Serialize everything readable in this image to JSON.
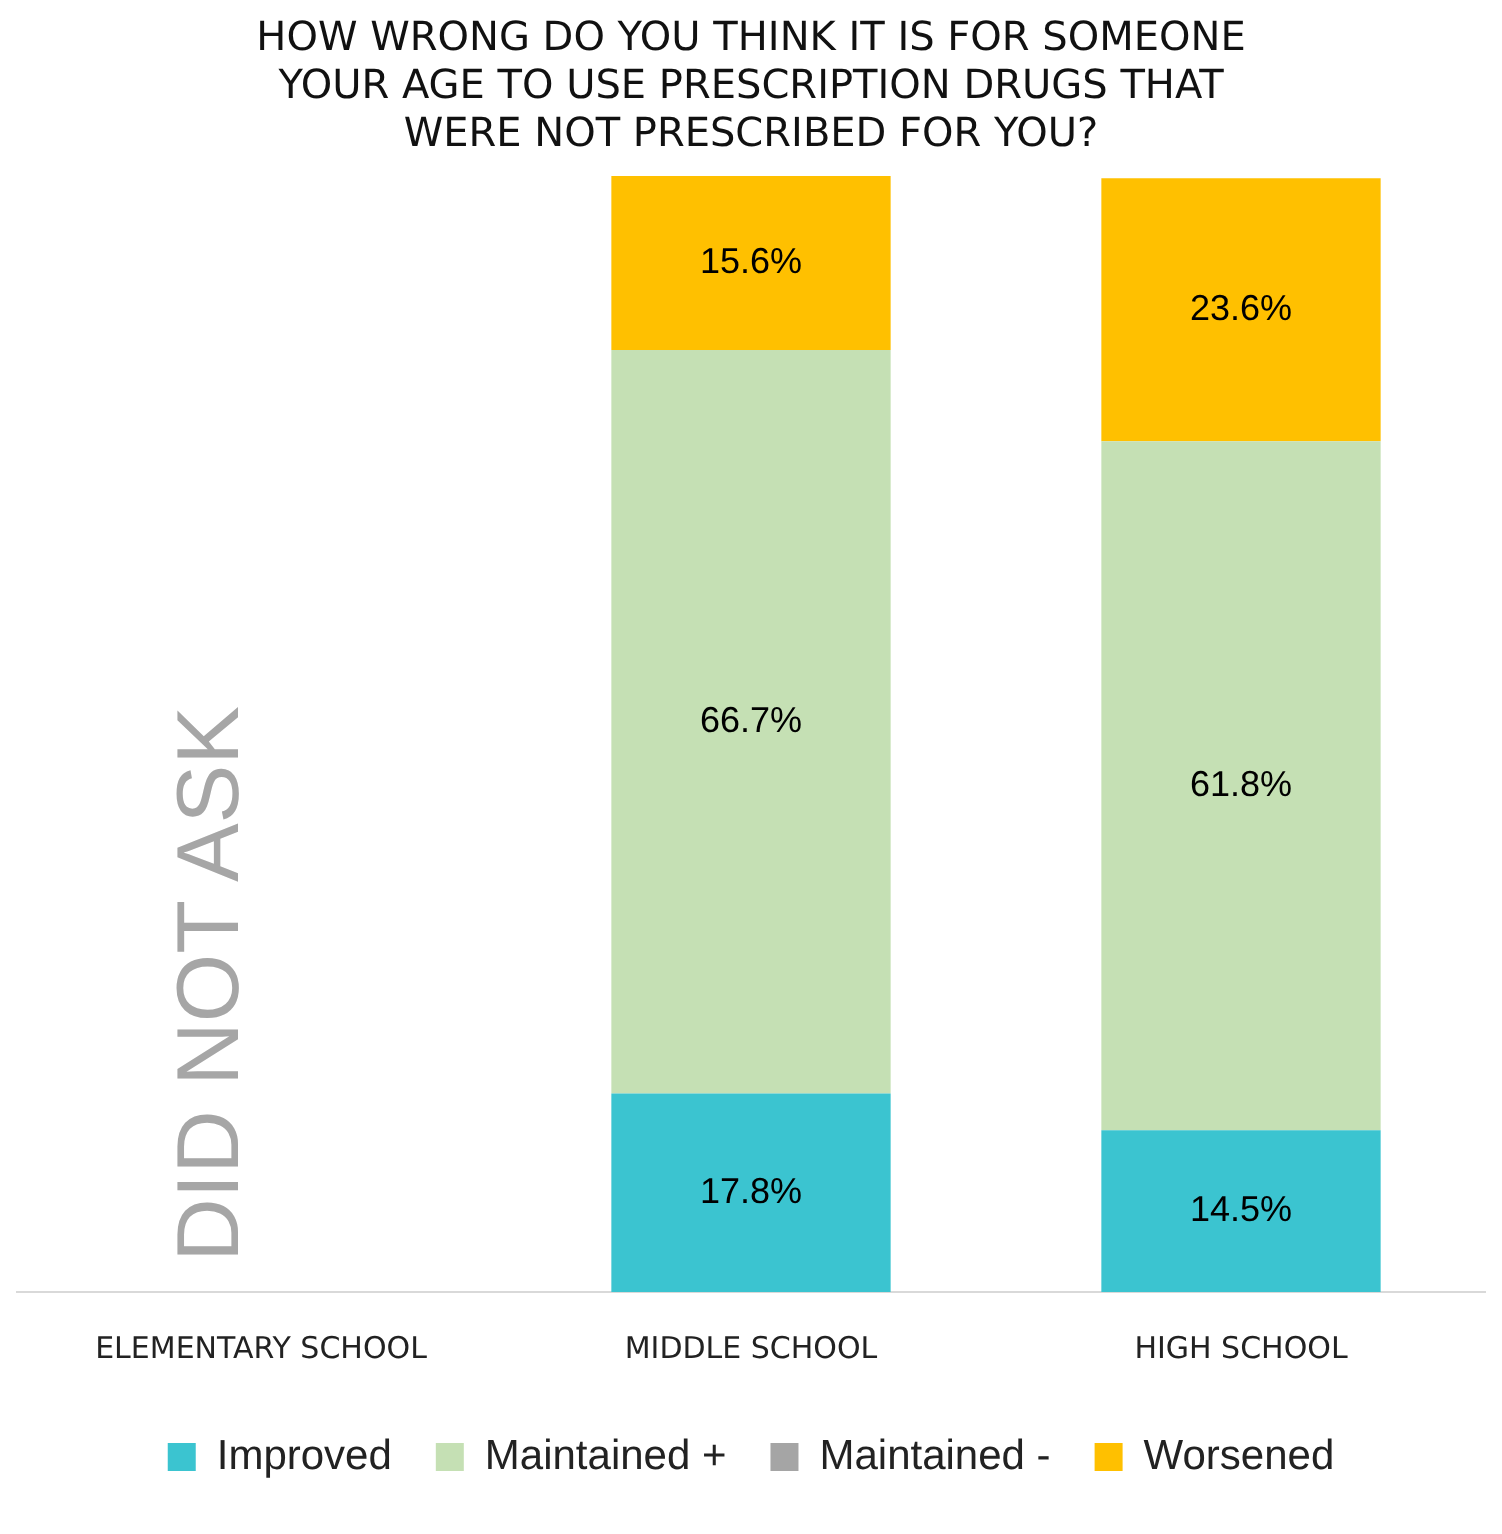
{
  "chart_data": {
    "type": "bar",
    "stacked": true,
    "title": [
      "HOW WRONG DO YOU THINK IT IS FOR SOMEONE",
      "YOUR AGE TO USE PRESCRIPTION DRUGS THAT",
      "WERE NOT PRESCRIBED FOR YOU?"
    ],
    "categories": [
      "ELEMENTARY SCHOOL",
      "MIDDLE SCHOOL",
      "HIGH SCHOOL"
    ],
    "series": [
      {
        "name": "Improved",
        "color": "#3bc4d0",
        "values": [
          null,
          17.8,
          14.5
        ],
        "value_labels": [
          null,
          "17.8%",
          "14.5%"
        ]
      },
      {
        "name": "Maintained +",
        "color": "#c5e0b4",
        "values": [
          null,
          66.7,
          61.8
        ],
        "value_labels": [
          null,
          "66.7%",
          "61.8%"
        ]
      },
      {
        "name": "Maintained -",
        "color": "#a5a5a5",
        "values": [
          null,
          null,
          null
        ],
        "value_labels": [
          null,
          null,
          null
        ]
      },
      {
        "name": "Worsened",
        "color": "#ffc000",
        "values": [
          null,
          15.6,
          23.6
        ],
        "value_labels": [
          null,
          "15.6%",
          "23.6%"
        ]
      }
    ],
    "ylim": [
      0,
      100.1
    ],
    "tick_labels": "x",
    "grid": false,
    "legend": "bottom",
    "annotations": [
      "DID NOT ASK"
    ]
  }
}
